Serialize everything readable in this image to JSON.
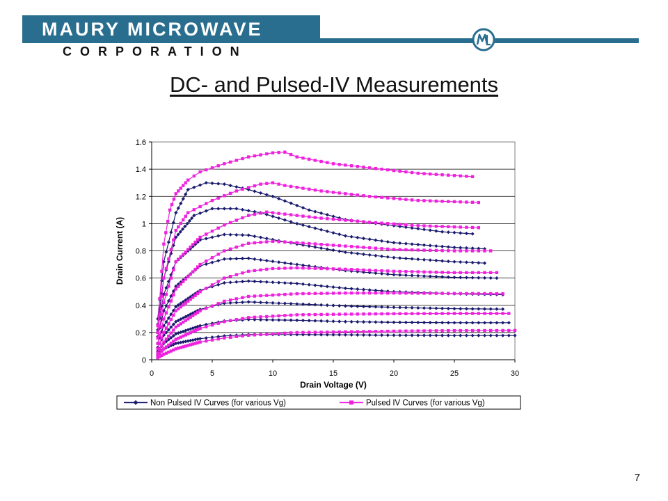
{
  "header": {
    "company_name": "MAURY MICROWAVE",
    "company_sub": "CORPORATION",
    "brand_color": "#2a6e8f",
    "logo_icon": "maury-ml-logo-icon"
  },
  "slide": {
    "title": "DC- and Pulsed-IV Measurements",
    "page_number": "7"
  },
  "chart_data": {
    "type": "line",
    "xlabel": "Drain Voltage (V)",
    "ylabel": "Drain Current (A)",
    "xlim": [
      0,
      30
    ],
    "ylim": [
      0,
      1.6
    ],
    "xticks": [
      "0",
      "5",
      "10",
      "15",
      "20",
      "25",
      "30"
    ],
    "yticks": [
      "0",
      "0.2",
      "0.4",
      "0.6",
      "0.8",
      "1",
      "1.2",
      "1.4",
      "1.6"
    ],
    "grid": "horizontal",
    "legend_position": "bottom",
    "legend": [
      {
        "label": "Non Pulsed IV Curves (for various Vg)",
        "color": "#1a1a6e",
        "marker": "diamond"
      },
      {
        "label": "Pulsed IV Curves (for various Vg)",
        "color": "#ee22dd",
        "marker": "square"
      }
    ],
    "series": [
      {
        "group": "non_pulsed",
        "color": "#1a1a6e",
        "points": [
          [
            0.5,
            0.04
          ],
          [
            1,
            0.08
          ],
          [
            2,
            0.12
          ],
          [
            4,
            0.155
          ],
          [
            6,
            0.175
          ],
          [
            8,
            0.185
          ],
          [
            12,
            0.185
          ],
          [
            16,
            0.183
          ],
          [
            20,
            0.18
          ],
          [
            25,
            0.178
          ],
          [
            30,
            0.178
          ]
        ]
      },
      {
        "group": "non_pulsed",
        "color": "#1a1a6e",
        "points": [
          [
            0.5,
            0.06
          ],
          [
            1,
            0.12
          ],
          [
            2,
            0.19
          ],
          [
            4,
            0.25
          ],
          [
            6,
            0.285
          ],
          [
            8,
            0.295
          ],
          [
            12,
            0.29
          ],
          [
            16,
            0.28
          ],
          [
            20,
            0.275
          ],
          [
            25,
            0.272
          ],
          [
            29.5,
            0.272
          ]
        ]
      },
      {
        "group": "non_pulsed",
        "color": "#1a1a6e",
        "points": [
          [
            0.5,
            0.09
          ],
          [
            1,
            0.18
          ],
          [
            2,
            0.28
          ],
          [
            4,
            0.37
          ],
          [
            6,
            0.415
          ],
          [
            8,
            0.425
          ],
          [
            12,
            0.41
          ],
          [
            16,
            0.395
          ],
          [
            20,
            0.385
          ],
          [
            25,
            0.375
          ],
          [
            29,
            0.372
          ]
        ]
      },
      {
        "group": "non_pulsed",
        "color": "#1a1a6e",
        "points": [
          [
            0.5,
            0.12
          ],
          [
            1,
            0.25
          ],
          [
            2,
            0.39
          ],
          [
            4,
            0.51
          ],
          [
            6,
            0.565
          ],
          [
            8,
            0.578
          ],
          [
            12,
            0.56
          ],
          [
            16,
            0.525
          ],
          [
            20,
            0.5
          ],
          [
            25,
            0.485
          ],
          [
            29,
            0.478
          ]
        ]
      },
      {
        "group": "non_pulsed",
        "color": "#1a1a6e",
        "points": [
          [
            0.5,
            0.17
          ],
          [
            1,
            0.36
          ],
          [
            2,
            0.54
          ],
          [
            4,
            0.69
          ],
          [
            6,
            0.74
          ],
          [
            8,
            0.745
          ],
          [
            12,
            0.7
          ],
          [
            16,
            0.655
          ],
          [
            20,
            0.625
          ],
          [
            25,
            0.605
          ],
          [
            28.5,
            0.6
          ]
        ]
      },
      {
        "group": "non_pulsed",
        "color": "#1a1a6e",
        "points": [
          [
            0.5,
            0.22
          ],
          [
            1,
            0.48
          ],
          [
            2,
            0.72
          ],
          [
            4,
            0.88
          ],
          [
            6,
            0.92
          ],
          [
            8,
            0.915
          ],
          [
            12,
            0.85
          ],
          [
            16,
            0.79
          ],
          [
            20,
            0.75
          ],
          [
            25,
            0.72
          ],
          [
            27.5,
            0.71
          ]
        ]
      },
      {
        "group": "non_pulsed",
        "color": "#1a1a6e",
        "points": [
          [
            0.5,
            0.26
          ],
          [
            1,
            0.6
          ],
          [
            2,
            0.9
          ],
          [
            3.5,
            1.06
          ],
          [
            5,
            1.11
          ],
          [
            7,
            1.11
          ],
          [
            9,
            1.08
          ],
          [
            12,
            1.0
          ],
          [
            16,
            0.91
          ],
          [
            20,
            0.86
          ],
          [
            25,
            0.825
          ],
          [
            27.5,
            0.815
          ]
        ]
      },
      {
        "group": "non_pulsed",
        "color": "#1a1a6e",
        "points": [
          [
            0.5,
            0.3
          ],
          [
            1,
            0.72
          ],
          [
            2,
            1.08
          ],
          [
            3,
            1.25
          ],
          [
            4.5,
            1.3
          ],
          [
            6,
            1.29
          ],
          [
            8,
            1.25
          ],
          [
            10,
            1.2
          ],
          [
            13,
            1.1
          ],
          [
            16,
            1.03
          ],
          [
            20,
            0.985
          ],
          [
            24,
            0.94
          ],
          [
            26.5,
            0.925
          ]
        ]
      },
      {
        "group": "pulsed",
        "color": "#ee22dd",
        "points": [
          [
            0.5,
            0.015
          ],
          [
            1,
            0.04
          ],
          [
            2,
            0.08
          ],
          [
            4,
            0.13
          ],
          [
            6,
            0.16
          ],
          [
            8,
            0.18
          ],
          [
            12,
            0.2
          ],
          [
            16,
            0.205
          ],
          [
            20,
            0.21
          ],
          [
            25,
            0.214
          ],
          [
            30,
            0.215
          ]
        ]
      },
      {
        "group": "pulsed",
        "color": "#ee22dd",
        "points": [
          [
            0.5,
            0.03
          ],
          [
            1,
            0.08
          ],
          [
            2,
            0.15
          ],
          [
            4,
            0.23
          ],
          [
            6,
            0.28
          ],
          [
            8,
            0.31
          ],
          [
            12,
            0.33
          ],
          [
            16,
            0.335
          ],
          [
            20,
            0.338
          ],
          [
            25,
            0.34
          ],
          [
            29.5,
            0.34
          ]
        ]
      },
      {
        "group": "pulsed",
        "color": "#ee22dd",
        "points": [
          [
            0.5,
            0.05
          ],
          [
            1,
            0.13
          ],
          [
            2,
            0.24
          ],
          [
            4,
            0.36
          ],
          [
            6,
            0.43
          ],
          [
            8,
            0.465
          ],
          [
            12,
            0.485
          ],
          [
            16,
            0.49
          ],
          [
            20,
            0.49
          ],
          [
            25,
            0.487
          ],
          [
            29,
            0.485
          ]
        ]
      },
      {
        "group": "pulsed",
        "color": "#ee22dd",
        "points": [
          [
            0.5,
            0.08
          ],
          [
            1,
            0.2
          ],
          [
            2,
            0.36
          ],
          [
            4,
            0.5
          ],
          [
            6,
            0.6
          ],
          [
            8,
            0.65
          ],
          [
            10,
            0.67
          ],
          [
            12,
            0.675
          ],
          [
            16,
            0.665
          ],
          [
            20,
            0.65
          ],
          [
            25,
            0.64
          ],
          [
            28.5,
            0.64
          ]
        ]
      },
      {
        "group": "pulsed",
        "color": "#ee22dd",
        "points": [
          [
            0.5,
            0.12
          ],
          [
            1,
            0.3
          ],
          [
            2,
            0.52
          ],
          [
            4,
            0.7
          ],
          [
            6,
            0.8
          ],
          [
            8,
            0.855
          ],
          [
            10,
            0.87
          ],
          [
            12,
            0.86
          ],
          [
            16,
            0.835
          ],
          [
            20,
            0.81
          ],
          [
            25,
            0.8
          ],
          [
            28,
            0.8
          ]
        ]
      },
      {
        "group": "pulsed",
        "color": "#ee22dd",
        "points": [
          [
            0.5,
            0.16
          ],
          [
            1,
            0.42
          ],
          [
            2,
            0.72
          ],
          [
            4,
            0.9
          ],
          [
            6,
            0.99
          ],
          [
            8,
            1.06
          ],
          [
            9.5,
            1.085
          ],
          [
            11,
            1.07
          ],
          [
            14,
            1.04
          ],
          [
            18,
            1.01
          ],
          [
            22,
            0.985
          ],
          [
            27,
            0.97
          ]
        ]
      },
      {
        "group": "pulsed",
        "color": "#ee22dd",
        "points": [
          [
            0.5,
            0.2
          ],
          [
            1,
            0.6
          ],
          [
            2,
            0.95
          ],
          [
            3,
            1.08
          ],
          [
            5,
            1.17
          ],
          [
            7,
            1.24
          ],
          [
            9,
            1.29
          ],
          [
            10,
            1.3
          ],
          [
            11,
            1.28
          ],
          [
            14,
            1.24
          ],
          [
            18,
            1.2
          ],
          [
            22,
            1.17
          ],
          [
            27,
            1.155
          ]
        ]
      },
      {
        "group": "pulsed",
        "color": "#ee22dd",
        "points": [
          [
            0.5,
            0.25
          ],
          [
            1,
            0.85
          ],
          [
            1.5,
            1.1
          ],
          [
            2,
            1.22
          ],
          [
            3,
            1.32
          ],
          [
            4,
            1.38
          ],
          [
            6,
            1.44
          ],
          [
            8,
            1.49
          ],
          [
            10,
            1.52
          ],
          [
            11,
            1.525
          ],
          [
            12,
            1.49
          ],
          [
            15,
            1.44
          ],
          [
            18,
            1.41
          ],
          [
            22,
            1.37
          ],
          [
            26.5,
            1.345
          ]
        ]
      }
    ]
  }
}
